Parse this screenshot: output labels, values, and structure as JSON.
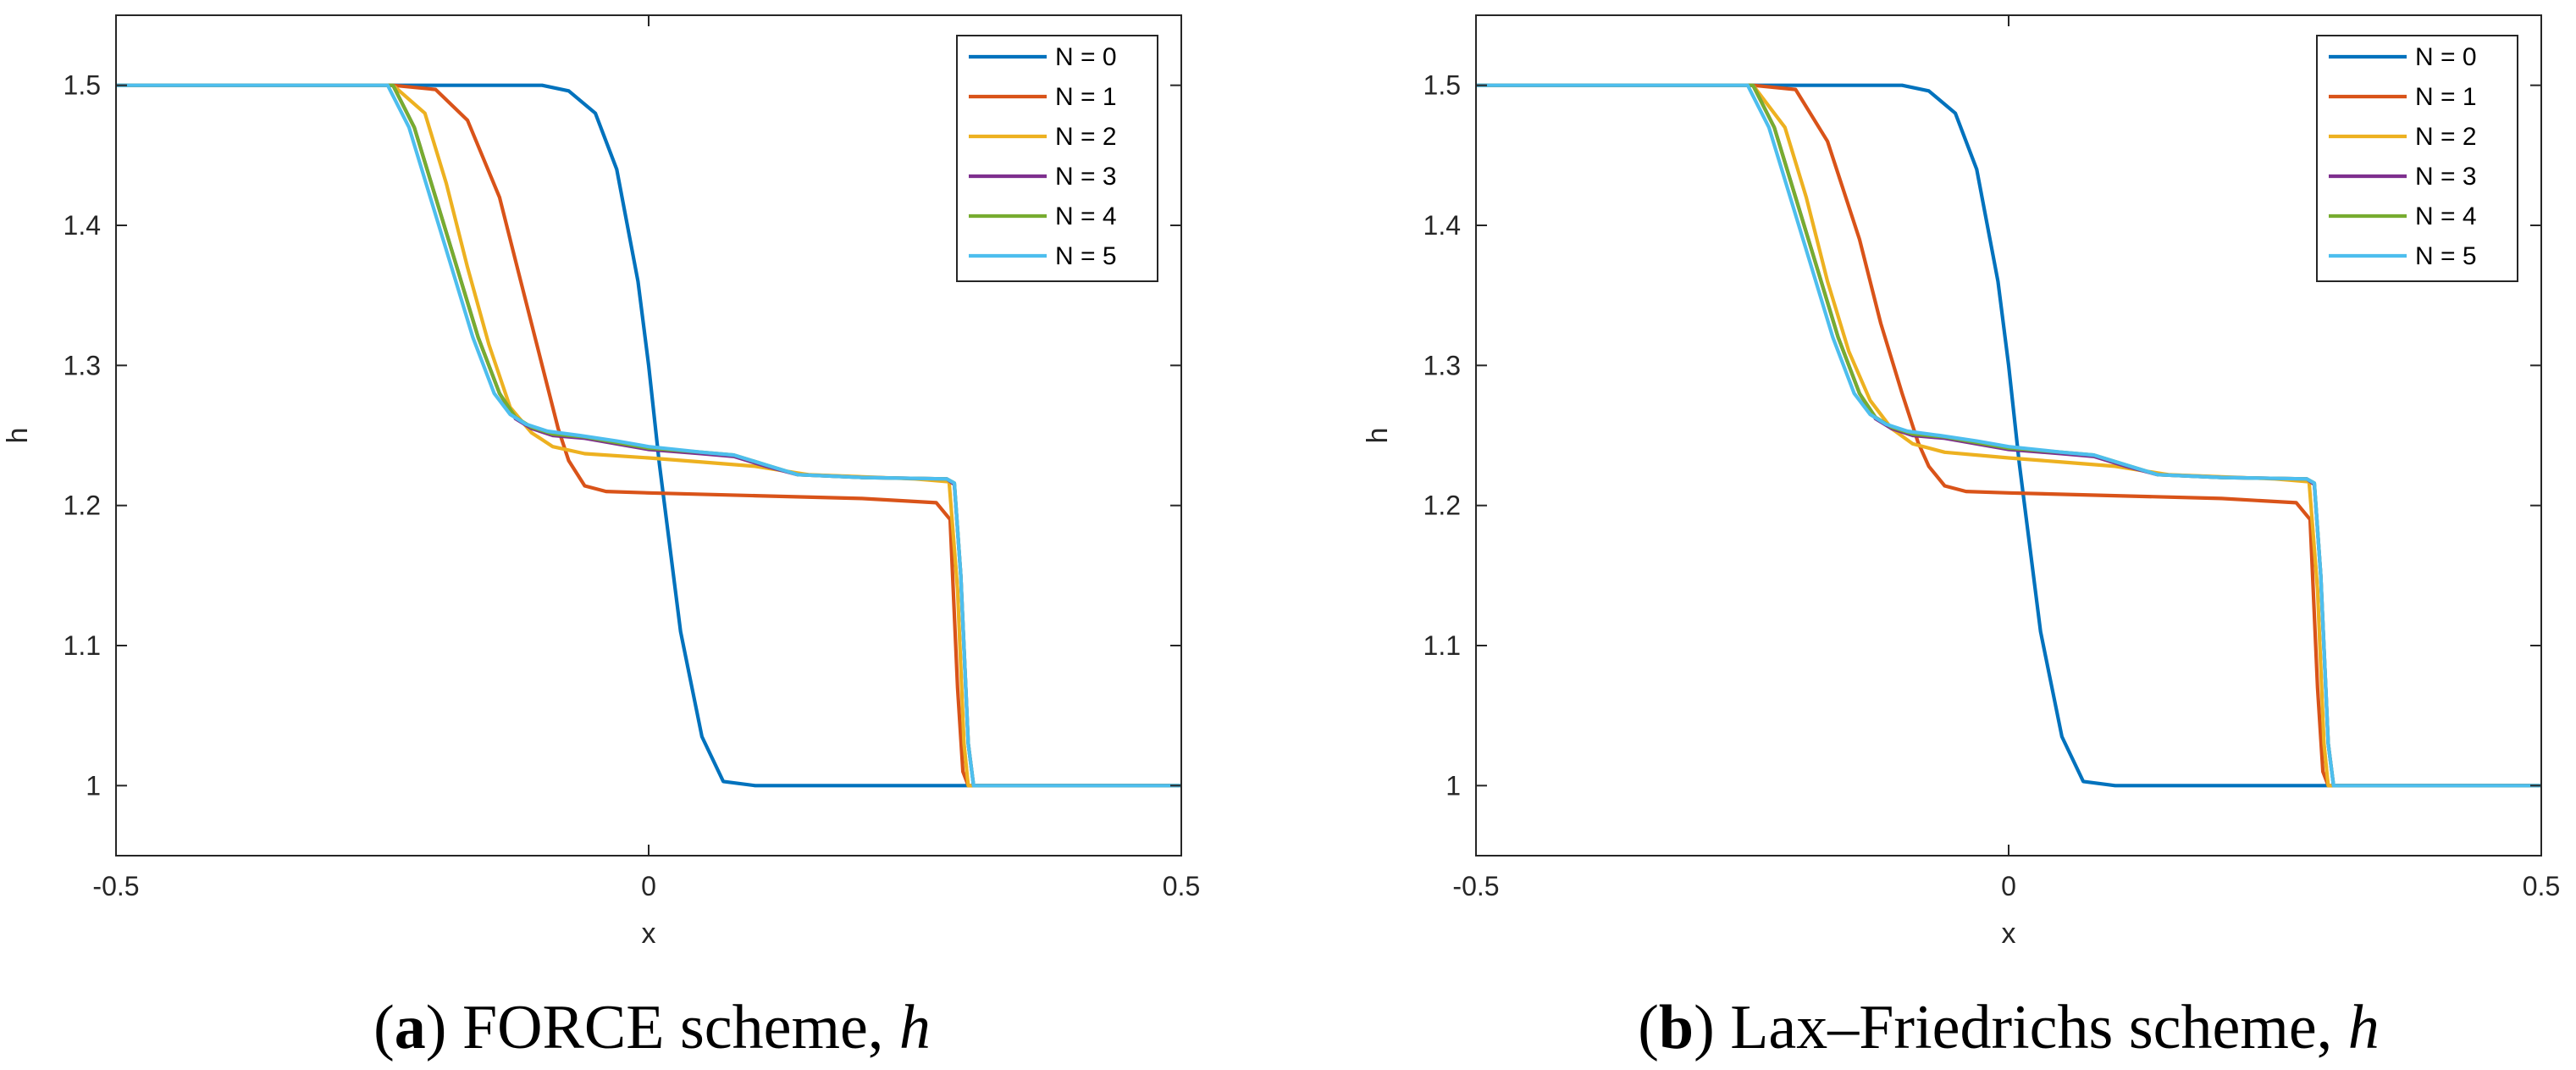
{
  "chart_data": [
    {
      "type": "line",
      "panel_letter": "a",
      "caption_text": "FORCE scheme,",
      "caption_var": "h",
      "xlabel": "x",
      "ylabel": "h",
      "xlim": [
        -0.5,
        0.5
      ],
      "ylim": [
        0.95,
        1.55
      ],
      "xticks": [
        -0.5,
        0,
        0.5
      ],
      "xtick_labels": [
        "-0.5",
        "0",
        "0.5"
      ],
      "yticks": [
        1,
        1.1,
        1.2,
        1.3,
        1.4,
        1.5
      ],
      "ytick_labels": [
        "1",
        "1.1",
        "1.2",
        "1.3",
        "1.4",
        "1.5"
      ],
      "legend_position": "top-right",
      "grid": false,
      "series": [
        {
          "name": "N = 0",
          "color": "#0072BD",
          "x": [
            -0.5,
            -0.2,
            -0.1,
            -0.075,
            -0.05,
            -0.03,
            -0.01,
            0,
            0.01,
            0.03,
            0.05,
            0.07,
            0.1,
            0.3,
            0.5
          ],
          "y": [
            1.5,
            1.5,
            1.5,
            1.496,
            1.48,
            1.44,
            1.36,
            1.3,
            1.23,
            1.11,
            1.035,
            1.003,
            1.0,
            1.0,
            1.0
          ]
        },
        {
          "name": "N = 1",
          "color": "#D95319",
          "x": [
            -0.5,
            -0.24,
            -0.2,
            -0.17,
            -0.14,
            -0.12,
            -0.1,
            -0.085,
            -0.075,
            -0.06,
            -0.04,
            0,
            0.1,
            0.2,
            0.27,
            0.283,
            0.29,
            0.295,
            0.3,
            0.5
          ],
          "y": [
            1.5,
            1.5,
            1.497,
            1.475,
            1.42,
            1.36,
            1.3,
            1.255,
            1.232,
            1.214,
            1.21,
            1.209,
            1.207,
            1.205,
            1.202,
            1.19,
            1.07,
            1.01,
            1.0,
            1.0
          ]
        },
        {
          "name": "N = 2",
          "color": "#EDB120",
          "x": [
            -0.5,
            -0.24,
            -0.21,
            -0.19,
            -0.17,
            -0.15,
            -0.13,
            -0.11,
            -0.09,
            -0.06,
            0,
            0.05,
            0.1,
            0.15,
            0.25,
            0.282,
            0.29,
            0.296,
            0.3,
            0.5
          ],
          "y": [
            1.5,
            1.5,
            1.48,
            1.43,
            1.37,
            1.315,
            1.27,
            1.252,
            1.242,
            1.237,
            1.234,
            1.231,
            1.228,
            1.222,
            1.219,
            1.217,
            1.14,
            1.03,
            1.0,
            1.0
          ]
        },
        {
          "name": "N = 3",
          "color": "#7E2F8E",
          "x": [
            -0.5,
            -0.24,
            -0.22,
            -0.2,
            -0.18,
            -0.16,
            -0.14,
            -0.125,
            -0.11,
            -0.09,
            -0.06,
            -0.03,
            0,
            0.05,
            0.08,
            0.11,
            0.14,
            0.2,
            0.28,
            0.287,
            0.293,
            0.3,
            0.305,
            0.5
          ],
          "y": [
            1.5,
            1.5,
            1.47,
            1.42,
            1.37,
            1.32,
            1.28,
            1.262,
            1.255,
            1.25,
            1.248,
            1.244,
            1.24,
            1.237,
            1.235,
            1.228,
            1.222,
            1.22,
            1.219,
            1.215,
            1.15,
            1.03,
            1.0,
            1.0
          ]
        },
        {
          "name": "N = 4",
          "color": "#77AC30",
          "x": [
            -0.5,
            -0.24,
            -0.22,
            -0.2,
            -0.18,
            -0.16,
            -0.14,
            -0.125,
            -0.11,
            -0.09,
            -0.06,
            -0.03,
            0,
            0.05,
            0.08,
            0.11,
            0.14,
            0.2,
            0.28,
            0.287,
            0.293,
            0.3,
            0.305,
            0.5
          ],
          "y": [
            1.5,
            1.5,
            1.47,
            1.42,
            1.37,
            1.32,
            1.28,
            1.263,
            1.256,
            1.251,
            1.249,
            1.245,
            1.241,
            1.238,
            1.236,
            1.229,
            1.222,
            1.22,
            1.219,
            1.216,
            1.15,
            1.03,
            1.0,
            1.0
          ]
        },
        {
          "name": "N = 5",
          "color": "#4DBEEE",
          "x": [
            -0.5,
            -0.245,
            -0.225,
            -0.205,
            -0.185,
            -0.165,
            -0.145,
            -0.13,
            -0.115,
            -0.095,
            -0.065,
            -0.03,
            0,
            0.05,
            0.08,
            0.11,
            0.14,
            0.2,
            0.28,
            0.287,
            0.293,
            0.3,
            0.305,
            0.5
          ],
          "y": [
            1.5,
            1.5,
            1.47,
            1.42,
            1.37,
            1.32,
            1.28,
            1.265,
            1.258,
            1.253,
            1.25,
            1.246,
            1.242,
            1.238,
            1.236,
            1.229,
            1.222,
            1.22,
            1.219,
            1.216,
            1.15,
            1.03,
            1.0,
            1.0
          ]
        }
      ]
    },
    {
      "type": "line",
      "panel_letter": "b",
      "caption_text": "Lax–Friedrichs scheme,",
      "caption_var": "h",
      "xlabel": "x",
      "ylabel": "h",
      "xlim": [
        -0.5,
        0.5
      ],
      "ylim": [
        0.95,
        1.55
      ],
      "xticks": [
        -0.5,
        0,
        0.5
      ],
      "xtick_labels": [
        "-0.5",
        "0",
        "0.5"
      ],
      "yticks": [
        1,
        1.1,
        1.2,
        1.3,
        1.4,
        1.5
      ],
      "ytick_labels": [
        "1",
        "1.1",
        "1.2",
        "1.3",
        "1.4",
        "1.5"
      ],
      "legend_position": "top-right",
      "grid": false,
      "series": [
        {
          "name": "N = 0",
          "color": "#0072BD",
          "x": [
            -0.5,
            -0.2,
            -0.1,
            -0.075,
            -0.05,
            -0.03,
            -0.01,
            0,
            0.01,
            0.03,
            0.05,
            0.07,
            0.1,
            0.3,
            0.5
          ],
          "y": [
            1.5,
            1.5,
            1.5,
            1.496,
            1.48,
            1.44,
            1.36,
            1.3,
            1.23,
            1.11,
            1.035,
            1.003,
            1.0,
            1.0,
            1.0
          ]
        },
        {
          "name": "N = 1",
          "color": "#D95319",
          "x": [
            -0.5,
            -0.24,
            -0.2,
            -0.17,
            -0.14,
            -0.12,
            -0.1,
            -0.085,
            -0.075,
            -0.06,
            -0.04,
            0,
            0.1,
            0.2,
            0.27,
            0.283,
            0.29,
            0.295,
            0.3,
            0.5
          ],
          "y": [
            1.5,
            1.5,
            1.497,
            1.46,
            1.39,
            1.33,
            1.28,
            1.245,
            1.228,
            1.214,
            1.21,
            1.209,
            1.207,
            1.205,
            1.202,
            1.19,
            1.07,
            1.01,
            1.0,
            1.0
          ]
        },
        {
          "name": "N = 2",
          "color": "#EDB120",
          "x": [
            -0.5,
            -0.24,
            -0.21,
            -0.19,
            -0.17,
            -0.15,
            -0.13,
            -0.11,
            -0.09,
            -0.06,
            0,
            0.05,
            0.1,
            0.15,
            0.25,
            0.282,
            0.29,
            0.296,
            0.3,
            0.5
          ],
          "y": [
            1.5,
            1.5,
            1.47,
            1.42,
            1.36,
            1.31,
            1.275,
            1.255,
            1.244,
            1.238,
            1.234,
            1.231,
            1.228,
            1.222,
            1.219,
            1.217,
            1.14,
            1.03,
            1.0,
            1.0
          ]
        },
        {
          "name": "N = 3",
          "color": "#7E2F8E",
          "x": [
            -0.5,
            -0.24,
            -0.22,
            -0.2,
            -0.18,
            -0.16,
            -0.14,
            -0.125,
            -0.11,
            -0.09,
            -0.06,
            -0.03,
            0,
            0.05,
            0.08,
            0.11,
            0.14,
            0.2,
            0.28,
            0.287,
            0.293,
            0.3,
            0.305,
            0.5
          ],
          "y": [
            1.5,
            1.5,
            1.47,
            1.42,
            1.37,
            1.32,
            1.28,
            1.262,
            1.255,
            1.25,
            1.248,
            1.244,
            1.24,
            1.237,
            1.235,
            1.228,
            1.222,
            1.22,
            1.219,
            1.215,
            1.15,
            1.03,
            1.0,
            1.0
          ]
        },
        {
          "name": "N = 4",
          "color": "#77AC30",
          "x": [
            -0.5,
            -0.24,
            -0.22,
            -0.2,
            -0.18,
            -0.16,
            -0.14,
            -0.125,
            -0.11,
            -0.09,
            -0.06,
            -0.03,
            0,
            0.05,
            0.08,
            0.11,
            0.14,
            0.2,
            0.28,
            0.287,
            0.293,
            0.3,
            0.305,
            0.5
          ],
          "y": [
            1.5,
            1.5,
            1.47,
            1.42,
            1.37,
            1.32,
            1.28,
            1.263,
            1.256,
            1.251,
            1.249,
            1.245,
            1.241,
            1.238,
            1.236,
            1.229,
            1.222,
            1.22,
            1.219,
            1.216,
            1.15,
            1.03,
            1.0,
            1.0
          ]
        },
        {
          "name": "N = 5",
          "color": "#4DBEEE",
          "x": [
            -0.5,
            -0.245,
            -0.225,
            -0.205,
            -0.185,
            -0.165,
            -0.145,
            -0.13,
            -0.115,
            -0.095,
            -0.065,
            -0.03,
            0,
            0.05,
            0.08,
            0.11,
            0.14,
            0.2,
            0.28,
            0.287,
            0.293,
            0.3,
            0.305,
            0.5
          ],
          "y": [
            1.5,
            1.5,
            1.47,
            1.42,
            1.37,
            1.32,
            1.28,
            1.265,
            1.258,
            1.253,
            1.25,
            1.246,
            1.242,
            1.238,
            1.236,
            1.229,
            1.222,
            1.22,
            1.219,
            1.216,
            1.15,
            1.03,
            1.0,
            1.0
          ]
        }
      ]
    }
  ]
}
